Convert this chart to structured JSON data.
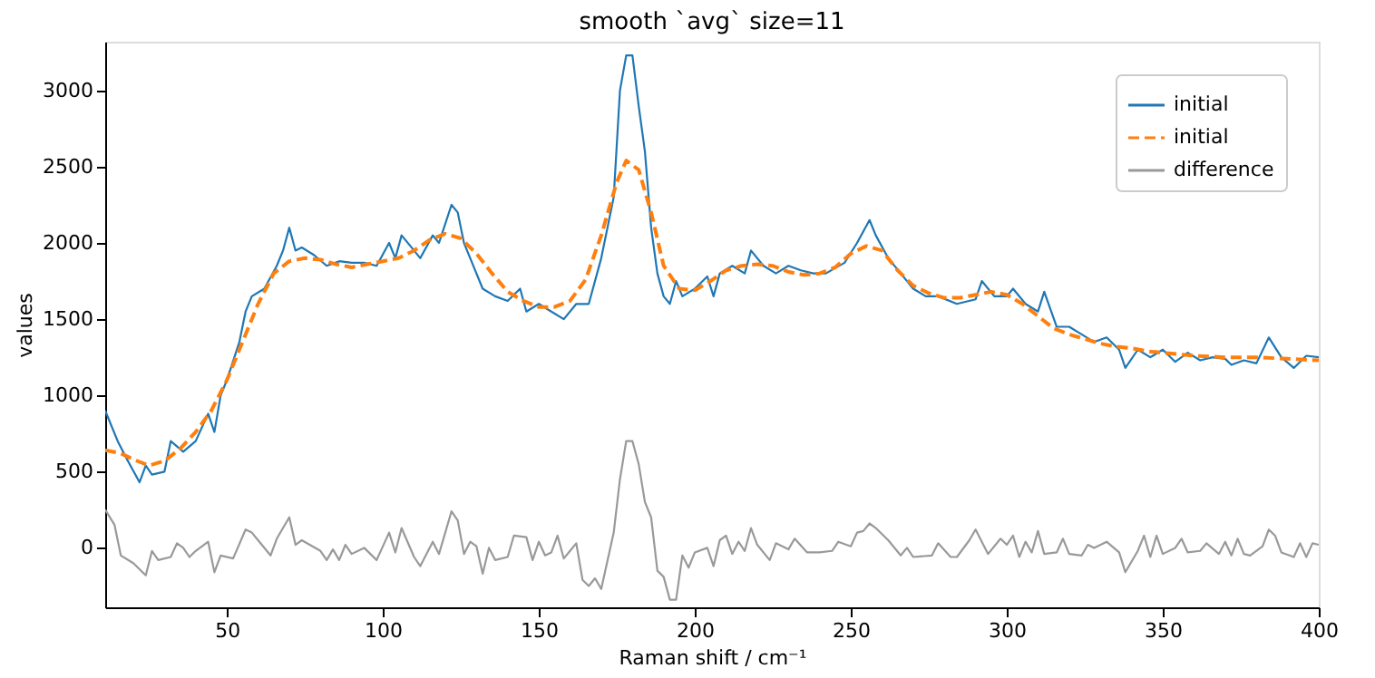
{
  "chart_data": {
    "type": "line",
    "title": "smooth `avg` size=11",
    "xlabel": "Raman shift / cm⁻¹",
    "ylabel": "values",
    "xlim": [
      11,
      400
    ],
    "xticks": [
      50,
      100,
      150,
      200,
      250,
      300,
      350,
      400
    ],
    "ylim": [
      -390,
      3320
    ],
    "yticks": [
      0,
      500,
      1000,
      1500,
      2000,
      2500,
      3000
    ],
    "grid": false,
    "legend": "top right",
    "marker": "none",
    "series": [
      {
        "name": "initial",
        "color": "#1f77b4",
        "line_style": "solid",
        "x": [
          11,
          15,
          18,
          22,
          24,
          26,
          30,
          32,
          36,
          40,
          44,
          46,
          48,
          50,
          54,
          56,
          58,
          62,
          66,
          68,
          70,
          72,
          74,
          78,
          82,
          86,
          90,
          94,
          98,
          102,
          104,
          106,
          110,
          112,
          116,
          118,
          122,
          124,
          126,
          128,
          132,
          136,
          140,
          144,
          146,
          150,
          154,
          158,
          162,
          166,
          170,
          174,
          176,
          178,
          180,
          182,
          184,
          186,
          188,
          190,
          192,
          194,
          196,
          200,
          204,
          206,
          208,
          212,
          216,
          218,
          222,
          226,
          230,
          234,
          238,
          242,
          248,
          252,
          256,
          258,
          262,
          266,
          270,
          274,
          278,
          284,
          290,
          292,
          296,
          300,
          302,
          306,
          310,
          312,
          316,
          320,
          324,
          328,
          332,
          336,
          338,
          342,
          346,
          350,
          354,
          358,
          362,
          366,
          370,
          372,
          376,
          380,
          384,
          388,
          392,
          396,
          400
        ],
        "values": [
          900,
          700,
          580,
          430,
          540,
          480,
          500,
          700,
          630,
          700,
          880,
          760,
          1000,
          1100,
          1350,
          1550,
          1650,
          1700,
          1850,
          1950,
          2100,
          1950,
          1970,
          1920,
          1850,
          1880,
          1870,
          1870,
          1850,
          2000,
          1900,
          2050,
          1950,
          1900,
          2050,
          2000,
          2250,
          2200,
          2000,
          1900,
          1700,
          1650,
          1620,
          1700,
          1550,
          1600,
          1550,
          1500,
          1600,
          1600,
          1900,
          2300,
          3000,
          3230,
          3230,
          2900,
          2600,
          2100,
          1800,
          1650,
          1600,
          1750,
          1650,
          1700,
          1780,
          1650,
          1800,
          1850,
          1800,
          1950,
          1850,
          1800,
          1850,
          1820,
          1800,
          1800,
          1870,
          2000,
          2150,
          2050,
          1900,
          1800,
          1700,
          1650,
          1650,
          1600,
          1630,
          1750,
          1650,
          1650,
          1700,
          1600,
          1550,
          1680,
          1450,
          1450,
          1400,
          1350,
          1380,
          1300,
          1180,
          1300,
          1250,
          1300,
          1220,
          1280,
          1230,
          1250,
          1240,
          1200,
          1230,
          1210,
          1380,
          1250,
          1180,
          1260,
          1250
        ]
      },
      {
        "name": "initial",
        "color": "#ff7f0e",
        "line_style": "dashed",
        "x": [
          11,
          16,
          20,
          25,
          30,
          35,
          40,
          45,
          50,
          55,
          60,
          65,
          70,
          75,
          80,
          85,
          90,
          95,
          100,
          105,
          110,
          115,
          120,
          125,
          130,
          135,
          140,
          145,
          150,
          155,
          160,
          165,
          170,
          175,
          178,
          182,
          186,
          190,
          195,
          200,
          205,
          210,
          215,
          220,
          225,
          230,
          235,
          240,
          245,
          250,
          255,
          260,
          265,
          270,
          275,
          280,
          285,
          290,
          295,
          300,
          305,
          310,
          315,
          320,
          325,
          330,
          335,
          340,
          345,
          350,
          360,
          370,
          380,
          390,
          400
        ],
        "values": [
          640,
          620,
          580,
          540,
          570,
          650,
          760,
          900,
          1100,
          1350,
          1600,
          1800,
          1880,
          1900,
          1890,
          1860,
          1840,
          1860,
          1880,
          1900,
          1950,
          2020,
          2060,
          2030,
          1930,
          1800,
          1680,
          1620,
          1580,
          1580,
          1620,
          1760,
          2050,
          2400,
          2540,
          2480,
          2200,
          1850,
          1700,
          1690,
          1750,
          1820,
          1850,
          1860,
          1850,
          1810,
          1790,
          1800,
          1840,
          1930,
          1980,
          1950,
          1820,
          1720,
          1670,
          1640,
          1640,
          1660,
          1680,
          1660,
          1600,
          1520,
          1440,
          1400,
          1370,
          1340,
          1320,
          1310,
          1290,
          1280,
          1260,
          1250,
          1250,
          1240,
          1230
        ]
      },
      {
        "name": "difference",
        "color": "#999999",
        "line_style": "solid",
        "x": [
          11,
          14,
          16,
          20,
          24,
          26,
          28,
          32,
          34,
          36,
          38,
          40,
          44,
          46,
          48,
          52,
          56,
          58,
          60,
          64,
          66,
          70,
          72,
          74,
          80,
          82,
          84,
          86,
          88,
          90,
          94,
          98,
          102,
          104,
          106,
          110,
          112,
          116,
          118,
          120,
          122,
          124,
          126,
          128,
          130,
          132,
          134,
          136,
          140,
          142,
          146,
          148,
          150,
          152,
          154,
          156,
          158,
          160,
          162,
          164,
          166,
          168,
          170,
          174,
          176,
          178,
          180,
          182,
          184,
          186,
          188,
          190,
          192,
          194,
          196,
          198,
          200,
          204,
          206,
          208,
          210,
          212,
          214,
          216,
          218,
          220,
          224,
          226,
          230,
          232,
          236,
          240,
          244,
          246,
          250,
          252,
          254,
          256,
          258,
          262,
          266,
          268,
          270,
          276,
          278,
          282,
          284,
          288,
          290,
          292,
          294,
          298,
          300,
          302,
          304,
          306,
          308,
          310,
          312,
          316,
          318,
          320,
          324,
          326,
          328,
          332,
          336,
          338,
          342,
          344,
          346,
          348,
          350,
          354,
          356,
          358,
          362,
          364,
          368,
          370,
          372,
          374,
          376,
          378,
          382,
          384,
          386,
          388,
          392,
          394,
          396,
          398,
          400
        ],
        "values": [
          250,
          150,
          -50,
          -100,
          -180,
          -20,
          -80,
          -60,
          30,
          0,
          -60,
          -20,
          40,
          -160,
          -50,
          -70,
          120,
          100,
          50,
          -50,
          60,
          200,
          20,
          50,
          -20,
          -80,
          -10,
          -80,
          20,
          -40,
          0,
          -80,
          100,
          -30,
          130,
          -60,
          -120,
          40,
          -40,
          100,
          240,
          180,
          -40,
          40,
          10,
          -170,
          0,
          -80,
          -60,
          80,
          70,
          -80,
          40,
          -50,
          -30,
          80,
          -70,
          -20,
          30,
          -210,
          -250,
          -200,
          -270,
          100,
          450,
          700,
          700,
          550,
          300,
          200,
          -150,
          -190,
          -340,
          -340,
          -50,
          -130,
          -30,
          0,
          -120,
          50,
          80,
          -40,
          40,
          -20,
          130,
          20,
          -80,
          30,
          -10,
          60,
          -30,
          -30,
          -20,
          40,
          10,
          100,
          110,
          160,
          130,
          50,
          -50,
          0,
          -60,
          -50,
          30,
          -60,
          -60,
          50,
          120,
          40,
          -40,
          60,
          20,
          80,
          -60,
          40,
          -30,
          110,
          -40,
          -30,
          60,
          -40,
          -50,
          20,
          0,
          40,
          -30,
          -160,
          -20,
          80,
          -60,
          80,
          -40,
          0,
          60,
          -30,
          -20,
          30,
          -40,
          40,
          -50,
          60,
          -40,
          -50,
          10,
          120,
          80,
          -30,
          -60,
          30,
          -60,
          30,
          20
        ]
      }
    ]
  }
}
